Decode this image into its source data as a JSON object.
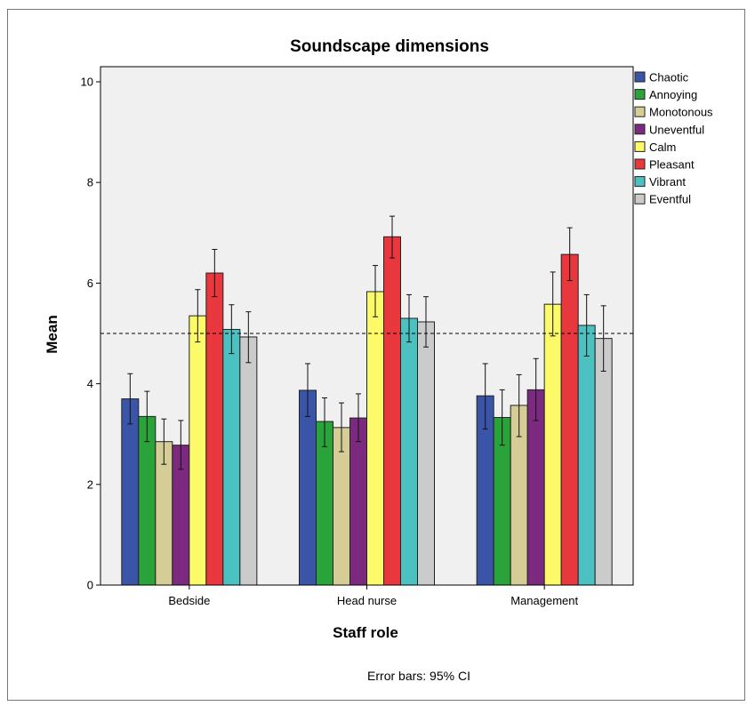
{
  "chart_data": {
    "type": "bar",
    "title": "Soundscape dimensions",
    "xlabel": "Staff role",
    "ylabel": "Mean",
    "categories": [
      "Bedside",
      "Head nurse",
      "Management"
    ],
    "ylim": [
      0,
      10.3
    ],
    "yticks": [
      0,
      2,
      4,
      6,
      8,
      10
    ],
    "reference_line": 5,
    "note": "Error bars: 95% CI",
    "legend_position": "right",
    "series": [
      {
        "name": "Chaotic",
        "color": "#3a55a8",
        "values": [
          3.7,
          3.87,
          3.76
        ],
        "ci_low": [
          3.2,
          3.35,
          3.1
        ],
        "ci_high": [
          4.2,
          4.4,
          4.4
        ]
      },
      {
        "name": "Annoying",
        "color": "#2aa33b",
        "values": [
          3.35,
          3.25,
          3.33
        ],
        "ci_low": [
          2.85,
          2.75,
          2.78
        ],
        "ci_high": [
          3.85,
          3.72,
          3.88
        ]
      },
      {
        "name": "Monotonous",
        "color": "#d6cd96",
        "values": [
          2.85,
          3.13,
          3.57
        ],
        "ci_low": [
          2.4,
          2.65,
          2.95
        ],
        "ci_high": [
          3.3,
          3.62,
          4.18
        ]
      },
      {
        "name": "Uneventful",
        "color": "#7b2a80",
        "values": [
          2.78,
          3.32,
          3.88
        ],
        "ci_low": [
          2.3,
          2.85,
          3.27
        ],
        "ci_high": [
          3.27,
          3.8,
          4.5
        ]
      },
      {
        "name": "Calm",
        "color": "#fdfa6a",
        "values": [
          5.35,
          5.83,
          5.58
        ],
        "ci_low": [
          4.83,
          5.33,
          4.95
        ],
        "ci_high": [
          5.87,
          6.35,
          6.22
        ]
      },
      {
        "name": "Pleasant",
        "color": "#e8383e",
        "values": [
          6.2,
          6.92,
          6.57
        ],
        "ci_low": [
          5.73,
          6.5,
          6.05
        ],
        "ci_high": [
          6.67,
          7.33,
          7.1
        ]
      },
      {
        "name": "Vibrant",
        "color": "#4cc1c2",
        "values": [
          5.08,
          5.3,
          5.16
        ],
        "ci_low": [
          4.6,
          4.83,
          4.55
        ],
        "ci_high": [
          5.57,
          5.77,
          5.77
        ]
      },
      {
        "name": "Eventful",
        "color": "#cbcbcb",
        "values": [
          4.93,
          5.23,
          4.9
        ],
        "ci_low": [
          4.42,
          4.73,
          4.25
        ],
        "ci_high": [
          5.43,
          5.73,
          5.55
        ]
      }
    ]
  }
}
